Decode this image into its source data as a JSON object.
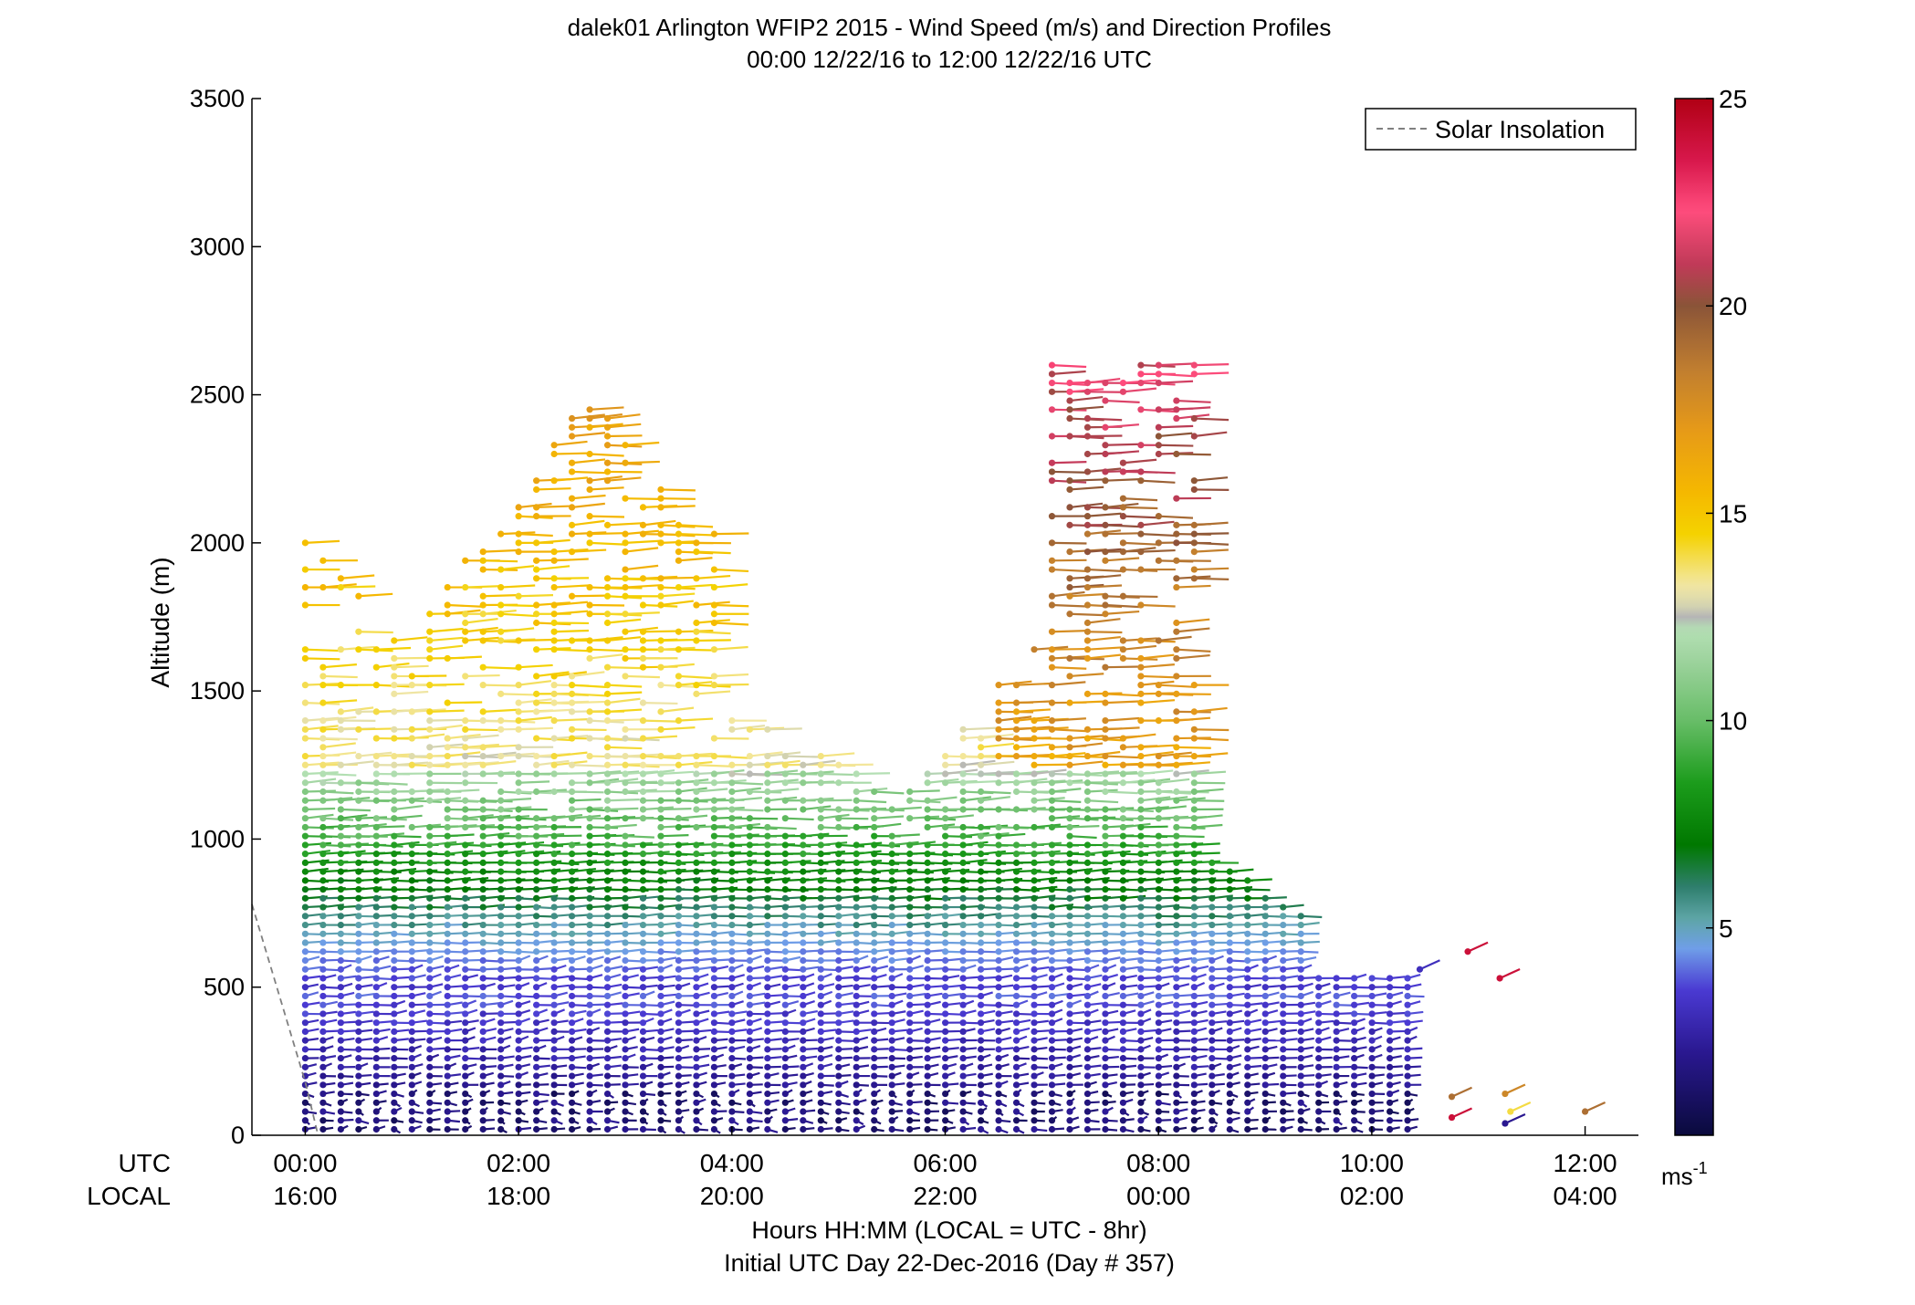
{
  "chart_data": {
    "type": "wind_barb_profile",
    "title_line1": "dalek01 Arlington WFIP2 2015 - Wind Speed (m/s) and Direction Profiles",
    "title_line2": "00:00 12/22/16 to 12:00 12/22/16  UTC",
    "ylabel": "Altitude (m)",
    "ylim": [
      0,
      3500
    ],
    "yticks": [
      "0",
      "500",
      "1000",
      "1500",
      "2000",
      "2500",
      "3000",
      "3500"
    ],
    "xlim_hours": [
      -0.5,
      12.5
    ],
    "xtick_hours": [
      0,
      2,
      4,
      6,
      8,
      10,
      12
    ],
    "xtick_utc": [
      "00:00",
      "02:00",
      "04:00",
      "06:00",
      "08:00",
      "10:00",
      "12:00"
    ],
    "xtick_local": [
      "16:00",
      "18:00",
      "20:00",
      "22:00",
      "00:00",
      "02:00",
      "04:00"
    ],
    "xrow_label_utc": "UTC",
    "xrow_label_local": "LOCAL",
    "xlabel_line1": "Hours HH:MM  (LOCAL = UTC - 8hr)",
    "xlabel_line2": "Initial UTC Day 22-Dec-2016 (Day # 357)",
    "legend": {
      "label": "Solar Insolation",
      "line_style": "dashed",
      "color": "#808080",
      "placement": "top-right"
    },
    "colorbar": {
      "range": [
        0,
        25
      ],
      "ticks": [
        "5",
        "10",
        "15",
        "20",
        "25"
      ],
      "unit_label": "ms",
      "unit_exponent": "-1",
      "colors": [
        [
          0,
          "#0a0a3c"
        ],
        [
          2,
          "#2a1890"
        ],
        [
          3.5,
          "#4a3ad2"
        ],
        [
          4.5,
          "#6f9ee8"
        ],
        [
          5.2,
          "#5fa6a8"
        ],
        [
          6,
          "#2e7e6c"
        ],
        [
          7,
          "#007800"
        ],
        [
          8.5,
          "#1c9c1c"
        ],
        [
          10,
          "#68bd68"
        ],
        [
          11.5,
          "#9fd49f"
        ],
        [
          12.2,
          "#b4e0b4"
        ],
        [
          12.5,
          "#b5b5b5"
        ],
        [
          12.8,
          "#d8d8b0"
        ],
        [
          13.3,
          "#f3e7a0"
        ],
        [
          14.5,
          "#f4d200"
        ],
        [
          15.5,
          "#f5b800"
        ],
        [
          17,
          "#e69a18"
        ],
        [
          18.5,
          "#bf7d30"
        ],
        [
          20,
          "#8a5438"
        ],
        [
          21,
          "#c03a58"
        ],
        [
          22.3,
          "#ff4d7d"
        ],
        [
          23.5,
          "#d8184c"
        ],
        [
          25,
          "#b00014"
        ]
      ]
    },
    "solar_insolation_line": [
      [
        -0.5,
        780
      ],
      [
        -0.25,
        480
      ],
      [
        0,
        180
      ],
      [
        0.12,
        0
      ]
    ],
    "profiles": {
      "time_step_hours": 0.1667,
      "time_start": 0,
      "time_end": 10.5,
      "altitude_step_m": 30,
      "max_altitude_m": 2600,
      "description": "wind barbs at each time/altitude; speed in m/s, direction in degrees from north"
    }
  }
}
